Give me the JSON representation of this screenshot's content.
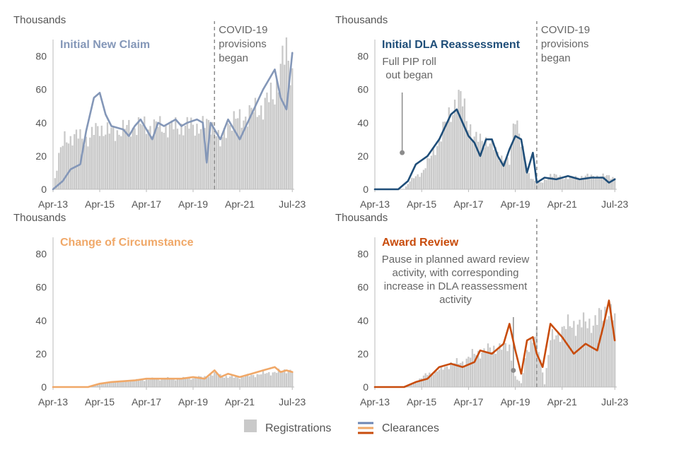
{
  "chart_data": [
    {
      "type": "bar+line",
      "title": "Initial New Claim",
      "units_label": "Thousands",
      "ylim": [
        0,
        90
      ],
      "yticks": [
        0,
        20,
        40,
        60,
        80
      ],
      "xlim": [
        "Apr-13",
        "Aug-23"
      ],
      "xtick_labels": [
        "Apr-13",
        "Apr-15",
        "Apr-17",
        "Apr-19",
        "Apr-21",
        "Jul-23"
      ],
      "series_color": "#8497b8",
      "annotation": {
        "text": [
          "COVID-19",
          "provisions",
          "began"
        ],
        "date": "Mar-20"
      },
      "registrations_points": [
        [
          "2013-04",
          0
        ],
        [
          "2013-07",
          20
        ],
        [
          "2013-10",
          30
        ],
        [
          "2014-04",
          32
        ],
        [
          "2014-10",
          30
        ],
        [
          "2015-04",
          38
        ],
        [
          "2015-07",
          35
        ],
        [
          "2015-10",
          34
        ],
        [
          "2016-04",
          36
        ],
        [
          "2016-10",
          38
        ],
        [
          "2017-04",
          38
        ],
        [
          "2017-10",
          38
        ],
        [
          "2018-04",
          37
        ],
        [
          "2018-10",
          38
        ],
        [
          "2019-04",
          38
        ],
        [
          "2019-10",
          38
        ],
        [
          "2020-03",
          40
        ],
        [
          "2020-06",
          26
        ],
        [
          "2020-10",
          40
        ],
        [
          "2021-04",
          42
        ],
        [
          "2021-10",
          46
        ],
        [
          "2022-04",
          50
        ],
        [
          "2022-10",
          58
        ],
        [
          "2023-01",
          74
        ],
        [
          "2023-04",
          80
        ],
        [
          "2023-07",
          70
        ]
      ],
      "clearances_points": [
        [
          "2013-04",
          0
        ],
        [
          "2013-09",
          5
        ],
        [
          "2014-01",
          12
        ],
        [
          "2014-06",
          15
        ],
        [
          "2014-09",
          35
        ],
        [
          "2015-01",
          55
        ],
        [
          "2015-04",
          58
        ],
        [
          "2015-07",
          45
        ],
        [
          "2015-10",
          38
        ],
        [
          "2016-04",
          36
        ],
        [
          "2016-07",
          32
        ],
        [
          "2016-10",
          38
        ],
        [
          "2017-01",
          42
        ],
        [
          "2017-07",
          30
        ],
        [
          "2017-10",
          40
        ],
        [
          "2018-01",
          38
        ],
        [
          "2018-07",
          42
        ],
        [
          "2018-10",
          38
        ],
        [
          "2019-01",
          40
        ],
        [
          "2019-06",
          42
        ],
        [
          "2019-09",
          40
        ],
        [
          "2019-11",
          16
        ],
        [
          "2020-01",
          40
        ],
        [
          "2020-06",
          30
        ],
        [
          "2020-10",
          42
        ],
        [
          "2021-04",
          30
        ],
        [
          "2021-10",
          45
        ],
        [
          "2022-04",
          60
        ],
        [
          "2022-10",
          72
        ],
        [
          "2023-01",
          55
        ],
        [
          "2023-04",
          48
        ],
        [
          "2023-07",
          82
        ]
      ]
    },
    {
      "type": "bar+line",
      "title": "Initial DLA Reassessment",
      "units_label": "Thousands",
      "ylim": [
        0,
        90
      ],
      "yticks": [
        0,
        20,
        40,
        60,
        80
      ],
      "xlim": [
        "Apr-13",
        "Aug-23"
      ],
      "xtick_labels": [
        "Apr-13",
        "Apr-15",
        "Apr-17",
        "Apr-19",
        "Apr-21",
        "Jul-23"
      ],
      "series_color": "#1f4e79",
      "annotation": {
        "text": [
          "COVID-19",
          "provisions",
          "began"
        ],
        "date": "Mar-20"
      },
      "callout": {
        "text": [
          "Full PIP roll",
          "out began"
        ],
        "date": "Jun-14",
        "value": 22
      },
      "registrations_points": [
        [
          "2013-04",
          0
        ],
        [
          "2014-07",
          0
        ],
        [
          "2014-10",
          5
        ],
        [
          "2015-04",
          10
        ],
        [
          "2015-10",
          22
        ],
        [
          "2016-04",
          38
        ],
        [
          "2016-10",
          55
        ],
        [
          "2017-01",
          52
        ],
        [
          "2017-07",
          30
        ],
        [
          "2018-01",
          30
        ],
        [
          "2018-07",
          22
        ],
        [
          "2019-01",
          15
        ],
        [
          "2019-04",
          48
        ],
        [
          "2019-07",
          28
        ],
        [
          "2019-10",
          10
        ],
        [
          "2020-03",
          4
        ],
        [
          "2020-06",
          4
        ],
        [
          "2020-10",
          9
        ],
        [
          "2021-04",
          7
        ],
        [
          "2021-10",
          7
        ],
        [
          "2022-04",
          8
        ],
        [
          "2022-10",
          8
        ],
        [
          "2023-04",
          8
        ],
        [
          "2023-07",
          7
        ]
      ],
      "clearances_points": [
        [
          "2013-04",
          0
        ],
        [
          "2014-04",
          0
        ],
        [
          "2014-09",
          5
        ],
        [
          "2015-01",
          15
        ],
        [
          "2015-07",
          20
        ],
        [
          "2016-01",
          30
        ],
        [
          "2016-07",
          45
        ],
        [
          "2016-10",
          48
        ],
        [
          "2017-01",
          40
        ],
        [
          "2017-04",
          32
        ],
        [
          "2017-07",
          28
        ],
        [
          "2017-10",
          20
        ],
        [
          "2018-01",
          30
        ],
        [
          "2018-04",
          30
        ],
        [
          "2018-07",
          20
        ],
        [
          "2018-10",
          14
        ],
        [
          "2019-01",
          24
        ],
        [
          "2019-04",
          32
        ],
        [
          "2019-07",
          30
        ],
        [
          "2019-10",
          10
        ],
        [
          "2020-01",
          22
        ],
        [
          "2020-03",
          4
        ],
        [
          "2020-07",
          7
        ],
        [
          "2021-01",
          6
        ],
        [
          "2021-07",
          8
        ],
        [
          "2022-01",
          6
        ],
        [
          "2022-07",
          7
        ],
        [
          "2023-01",
          7
        ],
        [
          "2023-04",
          4
        ],
        [
          "2023-07",
          6
        ]
      ]
    },
    {
      "type": "bar+line",
      "title": "Change of Circumstance",
      "units_label": "Thousands",
      "ylim": [
        0,
        90
      ],
      "yticks": [
        0,
        20,
        40,
        60,
        80
      ],
      "xlim": [
        "Apr-13",
        "Aug-23"
      ],
      "xtick_labels": [
        "Apr-13",
        "Apr-15",
        "Apr-17",
        "Apr-19",
        "Apr-21",
        "Jul-23"
      ],
      "series_color": "#f0a868",
      "registrations_points": [
        [
          "2013-04",
          0
        ],
        [
          "2014-10",
          0
        ],
        [
          "2015-04",
          2
        ],
        [
          "2015-10",
          3
        ],
        [
          "2016-10",
          4
        ],
        [
          "2017-10",
          5
        ],
        [
          "2018-10",
          5
        ],
        [
          "2019-10",
          6
        ],
        [
          "2020-03",
          8
        ],
        [
          "2020-10",
          6
        ],
        [
          "2021-04",
          6
        ],
        [
          "2021-10",
          7
        ],
        [
          "2022-04",
          8
        ],
        [
          "2022-10",
          9
        ],
        [
          "2023-04",
          10
        ],
        [
          "2023-07",
          10
        ]
      ],
      "clearances_points": [
        [
          "2013-04",
          0
        ],
        [
          "2014-10",
          0
        ],
        [
          "2015-04",
          2
        ],
        [
          "2015-10",
          3
        ],
        [
          "2016-10",
          4
        ],
        [
          "2017-04",
          5
        ],
        [
          "2017-10",
          5
        ],
        [
          "2018-10",
          5
        ],
        [
          "2019-04",
          6
        ],
        [
          "2019-10",
          5
        ],
        [
          "2020-03",
          10
        ],
        [
          "2020-06",
          6
        ],
        [
          "2020-10",
          8
        ],
        [
          "2021-04",
          6
        ],
        [
          "2021-10",
          8
        ],
        [
          "2022-04",
          10
        ],
        [
          "2022-10",
          12
        ],
        [
          "2023-01",
          9
        ],
        [
          "2023-04",
          10
        ],
        [
          "2023-07",
          9
        ]
      ]
    },
    {
      "type": "bar+line",
      "title": "Award Review",
      "units_label": "Thousands",
      "ylim": [
        0,
        90
      ],
      "yticks": [
        0,
        20,
        40,
        60,
        80
      ],
      "xlim": [
        "Apr-13",
        "Aug-23"
      ],
      "xtick_labels": [
        "Apr-13",
        "Apr-15",
        "Apr-17",
        "Apr-19",
        "Apr-21",
        "Jul-23"
      ],
      "series_color": "#c84c0c",
      "annotation": {
        "text": [],
        "date": "Mar-20"
      },
      "callout": {
        "text": [
          "Pause in planned award review",
          "activity, with corresponding",
          "increase in DLA reassessment",
          "activity"
        ],
        "date": "Mar-19",
        "value": 10
      },
      "registrations_points": [
        [
          "2013-04",
          0
        ],
        [
          "2014-07",
          0
        ],
        [
          "2015-01",
          3
        ],
        [
          "2015-07",
          8
        ],
        [
          "2016-01",
          10
        ],
        [
          "2016-07",
          14
        ],
        [
          "2017-01",
          15
        ],
        [
          "2017-07",
          20
        ],
        [
          "2018-01",
          22
        ],
        [
          "2018-07",
          24
        ],
        [
          "2019-01",
          24
        ],
        [
          "2019-04",
          6
        ],
        [
          "2019-07",
          2
        ],
        [
          "2019-10",
          24
        ],
        [
          "2020-03",
          30
        ],
        [
          "2020-07",
          2
        ],
        [
          "2020-10",
          28
        ],
        [
          "2021-04",
          35
        ],
        [
          "2021-10",
          38
        ],
        [
          "2022-04",
          38
        ],
        [
          "2022-10",
          40
        ],
        [
          "2023-04",
          48
        ],
        [
          "2023-07",
          40
        ]
      ],
      "clearances_points": [
        [
          "2013-04",
          0
        ],
        [
          "2014-07",
          0
        ],
        [
          "2015-01",
          3
        ],
        [
          "2015-07",
          5
        ],
        [
          "2016-01",
          12
        ],
        [
          "2016-07",
          14
        ],
        [
          "2017-01",
          12
        ],
        [
          "2017-07",
          15
        ],
        [
          "2017-10",
          22
        ],
        [
          "2018-04",
          20
        ],
        [
          "2018-10",
          26
        ],
        [
          "2019-01",
          38
        ],
        [
          "2019-04",
          22
        ],
        [
          "2019-07",
          8
        ],
        [
          "2019-10",
          28
        ],
        [
          "2020-01",
          30
        ],
        [
          "2020-03",
          20
        ],
        [
          "2020-06",
          12
        ],
        [
          "2020-10",
          38
        ],
        [
          "2021-04",
          30
        ],
        [
          "2021-10",
          20
        ],
        [
          "2022-04",
          26
        ],
        [
          "2022-10",
          22
        ],
        [
          "2023-01",
          36
        ],
        [
          "2023-04",
          52
        ],
        [
          "2023-07",
          28
        ]
      ]
    }
  ],
  "legend": {
    "registrations_label": "Registrations",
    "clearances_label": "Clearances",
    "registrations_color": "#c9c9c9",
    "clearance_swatch_colors": [
      "#6d86b3",
      "#f0a868",
      "#c84c0c"
    ]
  }
}
